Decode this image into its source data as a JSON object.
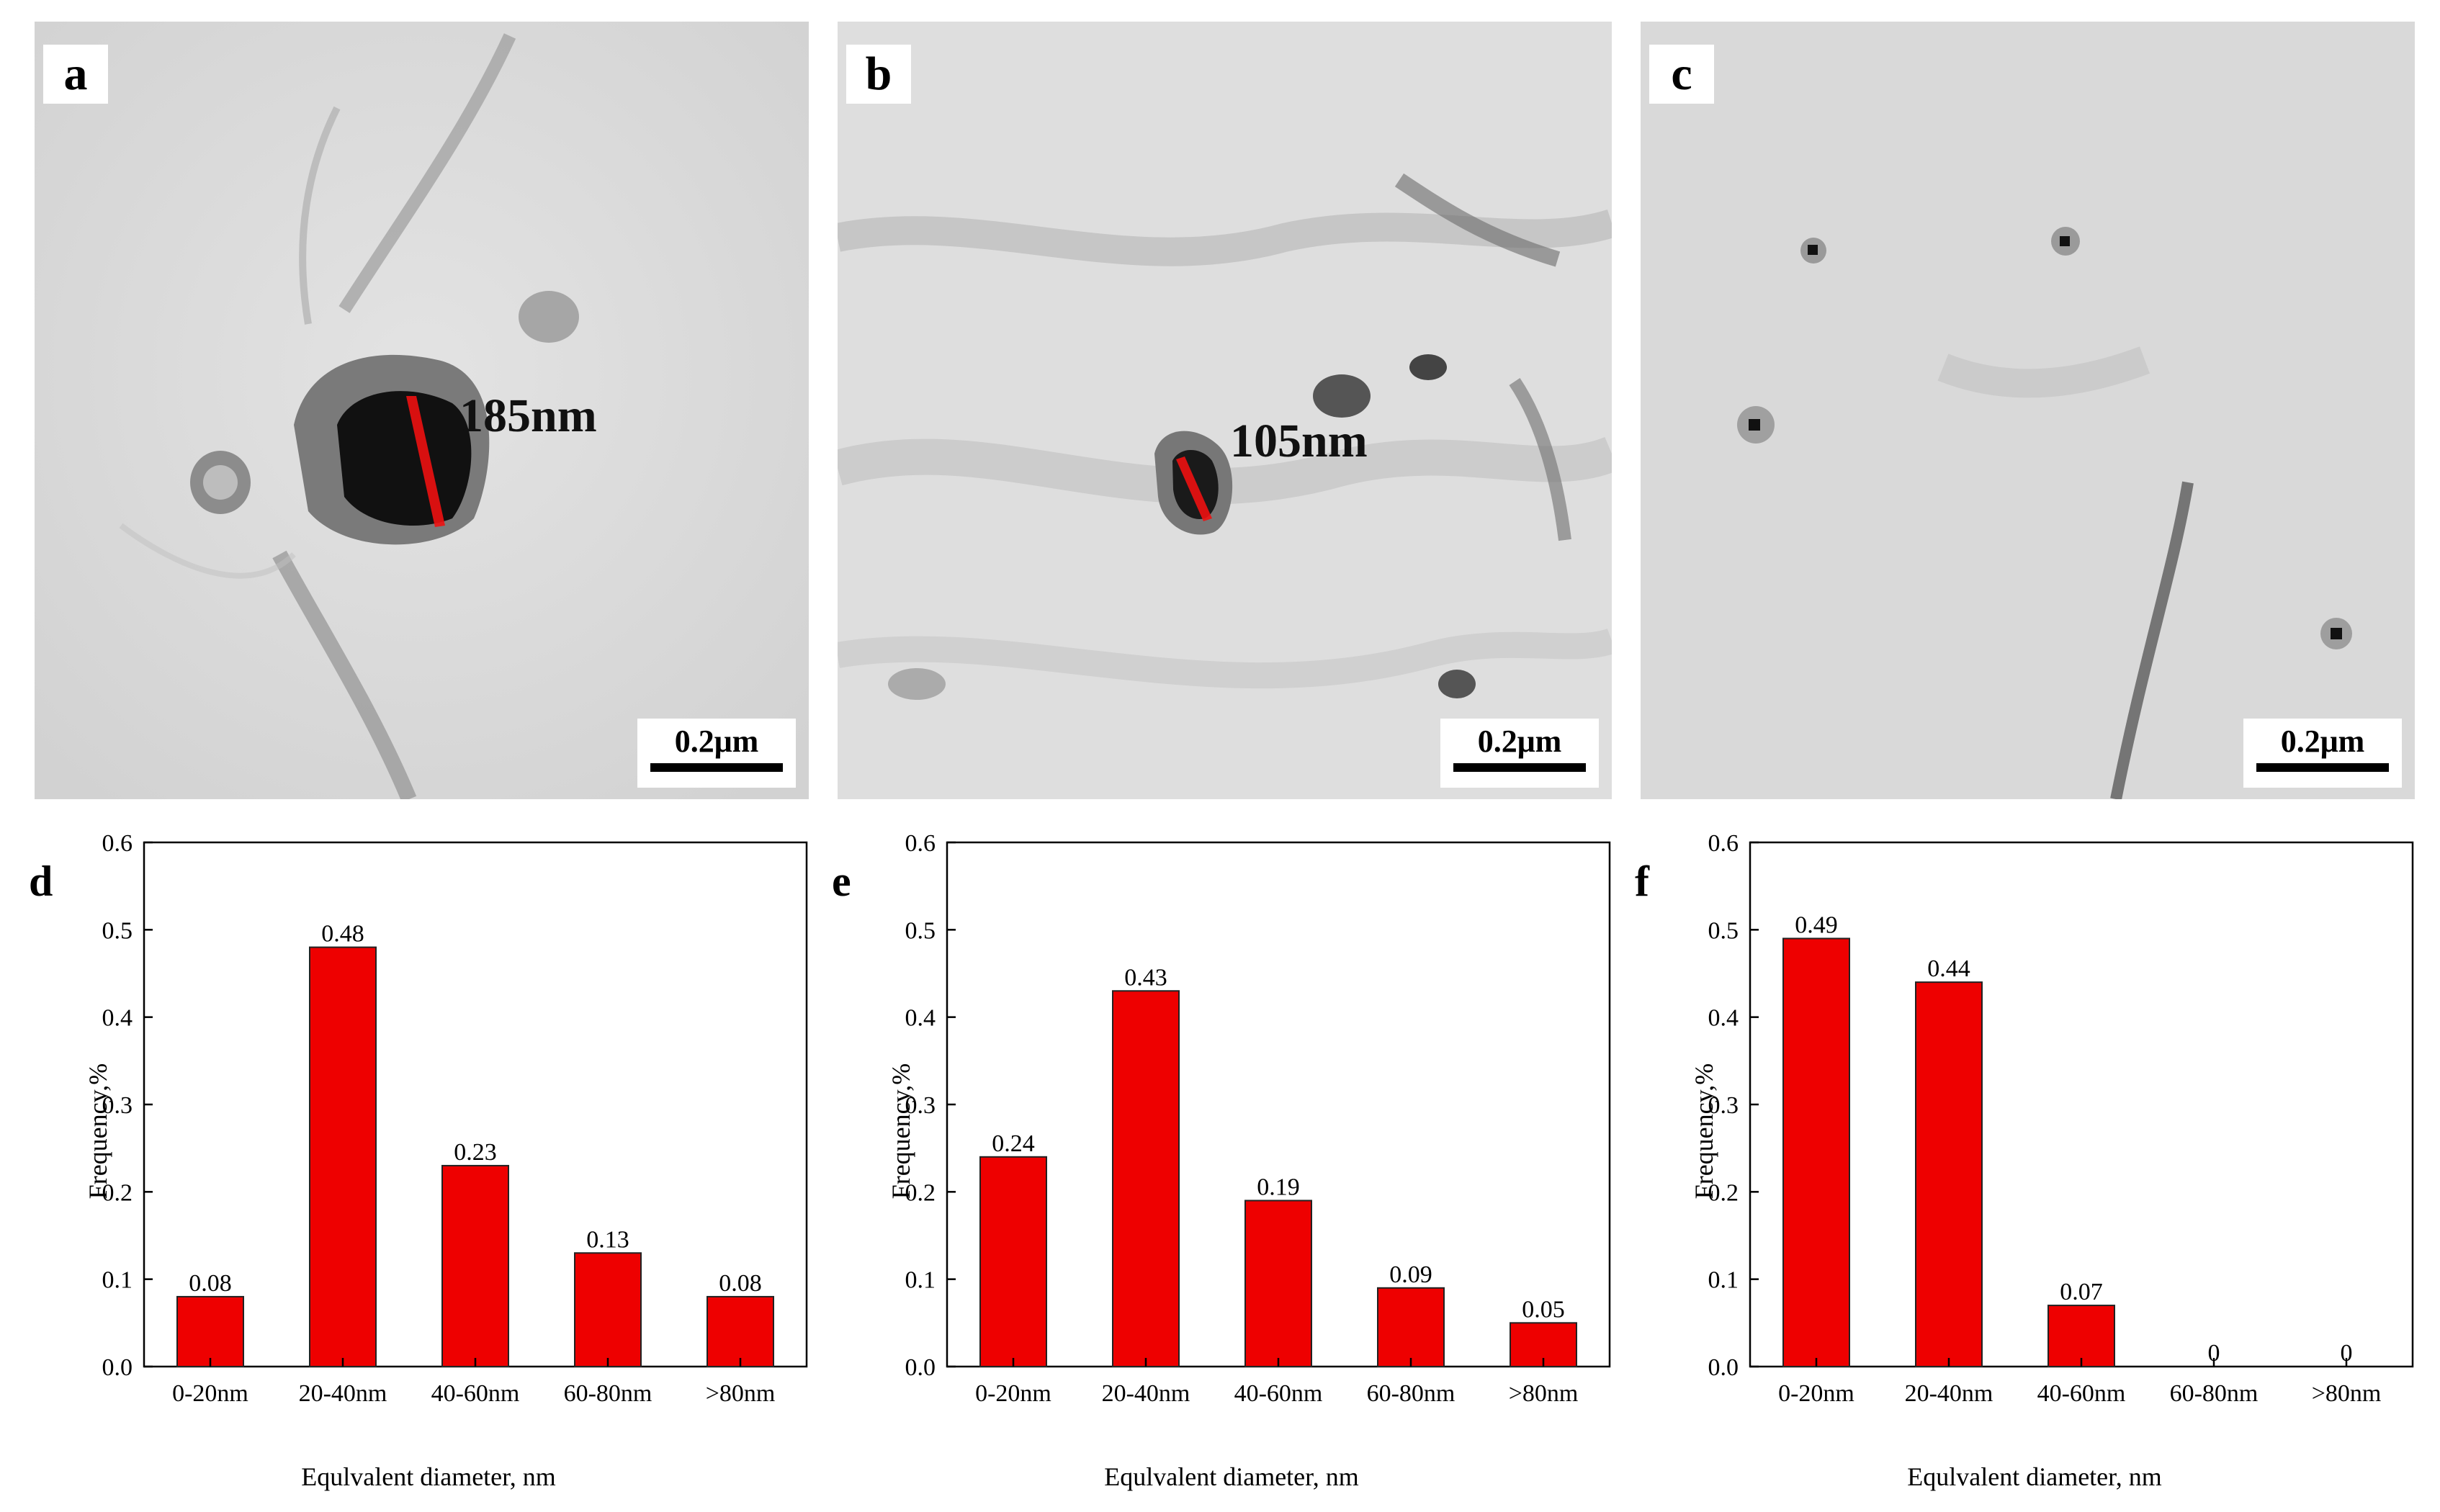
{
  "micrographs": [
    {
      "letter": "a",
      "measure": "185nm",
      "scale": "0.2μm"
    },
    {
      "letter": "b",
      "measure": "105nm",
      "scale": "0.2μm"
    },
    {
      "letter": "c",
      "measure": "",
      "scale": "0.2μm"
    }
  ],
  "colors": {
    "bar": "#ee0000",
    "axis": "#000000"
  },
  "chart_data": [
    {
      "type": "bar",
      "panel": "d",
      "categories": [
        "0-20nm",
        "20-40nm",
        "40-60nm",
        "60-80nm",
        ">80nm"
      ],
      "values": [
        0.08,
        0.48,
        0.23,
        0.13,
        0.08
      ],
      "labels": [
        "0.08",
        "0.48",
        "0.23",
        "0.13",
        "0.08"
      ],
      "xlabel": "Equlvalent diameter, nm",
      "ylabel": "Frequency,%",
      "ylim": [
        0,
        0.6
      ],
      "yticks": [
        "0.0",
        "0.1",
        "0.2",
        "0.3",
        "0.4",
        "0.5",
        "0.6"
      ]
    },
    {
      "type": "bar",
      "panel": "e",
      "categories": [
        "0-20nm",
        "20-40nm",
        "40-60nm",
        "60-80nm",
        ">80nm"
      ],
      "values": [
        0.24,
        0.43,
        0.19,
        0.09,
        0.05
      ],
      "labels": [
        "0.24",
        "0.43",
        "0.19",
        "0.09",
        "0.05"
      ],
      "xlabel": "Equlvalent diameter, nm",
      "ylabel": "Frequency,%",
      "ylim": [
        0,
        0.6
      ],
      "yticks": [
        "0.0",
        "0.1",
        "0.2",
        "0.3",
        "0.4",
        "0.5",
        "0.6"
      ]
    },
    {
      "type": "bar",
      "panel": "f",
      "categories": [
        "0-20nm",
        "20-40nm",
        "40-60nm",
        "60-80nm",
        ">80nm"
      ],
      "values": [
        0.49,
        0.44,
        0.07,
        0,
        0
      ],
      "labels": [
        "0.49",
        "0.44",
        "0.07",
        "0",
        "0"
      ],
      "xlabel": "Equlvalent diameter, nm",
      "ylabel": "Frequency,%",
      "ylim": [
        0,
        0.6
      ],
      "yticks": [
        "0.0",
        "0.1",
        "0.2",
        "0.3",
        "0.4",
        "0.5",
        "0.6"
      ]
    }
  ]
}
